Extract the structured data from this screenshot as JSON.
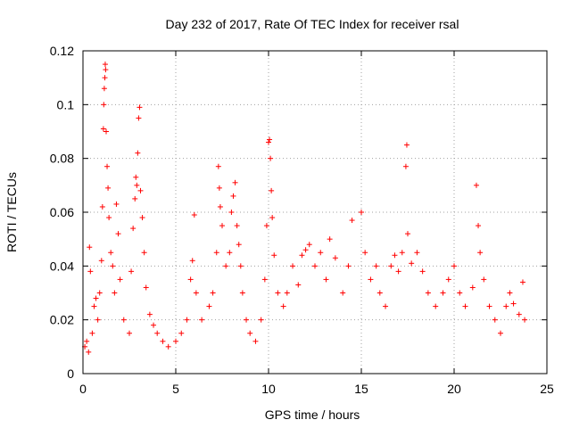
{
  "chart_data": {
    "type": "scatter",
    "title": "Day 232 of 2017, Rate Of TEC Index for receiver rsal",
    "xlabel": "GPS time / hours",
    "ylabel": "ROTI / TECUs",
    "xlim": [
      0,
      25
    ],
    "ylim": [
      0,
      0.12
    ],
    "x_ticks": [
      "0",
      "5",
      "10",
      "15",
      "20",
      "25"
    ],
    "y_ticks": [
      "0",
      "0.02",
      "0.04",
      "0.06",
      "0.08",
      "0.1",
      "0.12"
    ],
    "grid": true,
    "marker": "plus",
    "colors": {
      "series": "#ff0000",
      "grid": "#a0a0a0",
      "axes": "#000000"
    },
    "series": [
      {
        "points": [
          [
            0.1,
            0.01
          ],
          [
            0.2,
            0.012
          ],
          [
            0.3,
            0.008
          ],
          [
            0.35,
            0.047
          ],
          [
            0.4,
            0.038
          ],
          [
            0.5,
            0.015
          ],
          [
            0.6,
            0.025
          ],
          [
            0.7,
            0.028
          ],
          [
            0.8,
            0.02
          ],
          [
            0.9,
            0.03
          ],
          [
            1.0,
            0.042
          ],
          [
            1.05,
            0.062
          ],
          [
            1.1,
            0.091
          ],
          [
            1.12,
            0.1
          ],
          [
            1.15,
            0.106
          ],
          [
            1.18,
            0.11
          ],
          [
            1.2,
            0.115
          ],
          [
            1.22,
            0.113
          ],
          [
            1.25,
            0.09
          ],
          [
            1.3,
            0.077
          ],
          [
            1.35,
            0.069
          ],
          [
            1.4,
            0.058
          ],
          [
            1.5,
            0.045
          ],
          [
            1.6,
            0.04
          ],
          [
            1.7,
            0.03
          ],
          [
            1.8,
            0.063
          ],
          [
            1.9,
            0.052
          ],
          [
            2.0,
            0.035
          ],
          [
            2.2,
            0.02
          ],
          [
            2.5,
            0.015
          ],
          [
            2.6,
            0.038
          ],
          [
            2.7,
            0.054
          ],
          [
            2.8,
            0.065
          ],
          [
            2.85,
            0.073
          ],
          [
            2.9,
            0.07
          ],
          [
            2.95,
            0.082
          ],
          [
            3.0,
            0.095
          ],
          [
            3.05,
            0.099
          ],
          [
            3.1,
            0.068
          ],
          [
            3.2,
            0.058
          ],
          [
            3.3,
            0.045
          ],
          [
            3.4,
            0.032
          ],
          [
            3.6,
            0.022
          ],
          [
            3.8,
            0.018
          ],
          [
            4.0,
            0.015
          ],
          [
            4.3,
            0.012
          ],
          [
            4.6,
            0.01
          ],
          [
            5.0,
            0.012
          ],
          [
            5.3,
            0.015
          ],
          [
            5.6,
            0.02
          ],
          [
            5.8,
            0.035
          ],
          [
            5.9,
            0.042
          ],
          [
            6.0,
            0.059
          ],
          [
            6.1,
            0.03
          ],
          [
            6.4,
            0.02
          ],
          [
            6.8,
            0.025
          ],
          [
            7.0,
            0.03
          ],
          [
            7.2,
            0.045
          ],
          [
            7.3,
            0.077
          ],
          [
            7.35,
            0.069
          ],
          [
            7.4,
            0.062
          ],
          [
            7.5,
            0.055
          ],
          [
            7.7,
            0.04
          ],
          [
            7.9,
            0.045
          ],
          [
            8.0,
            0.06
          ],
          [
            8.1,
            0.066
          ],
          [
            8.2,
            0.071
          ],
          [
            8.3,
            0.055
          ],
          [
            8.4,
            0.048
          ],
          [
            8.5,
            0.04
          ],
          [
            8.6,
            0.03
          ],
          [
            8.8,
            0.02
          ],
          [
            9.0,
            0.015
          ],
          [
            9.3,
            0.012
          ],
          [
            9.6,
            0.02
          ],
          [
            9.8,
            0.035
          ],
          [
            9.9,
            0.055
          ],
          [
            10.0,
            0.086
          ],
          [
            10.05,
            0.087
          ],
          [
            10.1,
            0.08
          ],
          [
            10.15,
            0.068
          ],
          [
            10.2,
            0.058
          ],
          [
            10.3,
            0.044
          ],
          [
            10.5,
            0.03
          ],
          [
            10.8,
            0.025
          ],
          [
            11.0,
            0.03
          ],
          [
            11.3,
            0.04
          ],
          [
            11.6,
            0.033
          ],
          [
            11.8,
            0.044
          ],
          [
            12.0,
            0.046
          ],
          [
            12.2,
            0.048
          ],
          [
            12.5,
            0.04
          ],
          [
            12.8,
            0.045
          ],
          [
            13.1,
            0.035
          ],
          [
            13.3,
            0.05
          ],
          [
            13.6,
            0.043
          ],
          [
            14.0,
            0.03
          ],
          [
            14.3,
            0.04
          ],
          [
            14.5,
            0.057
          ],
          [
            15.0,
            0.06
          ],
          [
            15.2,
            0.045
          ],
          [
            15.5,
            0.035
          ],
          [
            15.8,
            0.04
          ],
          [
            16.0,
            0.03
          ],
          [
            16.3,
            0.025
          ],
          [
            16.6,
            0.04
          ],
          [
            16.8,
            0.044
          ],
          [
            17.0,
            0.038
          ],
          [
            17.2,
            0.045
          ],
          [
            17.4,
            0.077
          ],
          [
            17.45,
            0.085
          ],
          [
            17.5,
            0.052
          ],
          [
            17.7,
            0.041
          ],
          [
            18.0,
            0.045
          ],
          [
            18.3,
            0.038
          ],
          [
            18.6,
            0.03
          ],
          [
            19.0,
            0.025
          ],
          [
            19.4,
            0.03
          ],
          [
            19.7,
            0.035
          ],
          [
            20.0,
            0.04
          ],
          [
            20.3,
            0.03
          ],
          [
            20.6,
            0.025
          ],
          [
            21.0,
            0.032
          ],
          [
            21.2,
            0.07
          ],
          [
            21.3,
            0.055
          ],
          [
            21.4,
            0.045
          ],
          [
            21.6,
            0.035
          ],
          [
            21.9,
            0.025
          ],
          [
            22.2,
            0.02
          ],
          [
            22.5,
            0.015
          ],
          [
            22.8,
            0.025
          ],
          [
            23.0,
            0.03
          ],
          [
            23.2,
            0.026
          ],
          [
            23.5,
            0.022
          ],
          [
            23.7,
            0.034
          ],
          [
            23.8,
            0.02
          ]
        ]
      }
    ]
  }
}
